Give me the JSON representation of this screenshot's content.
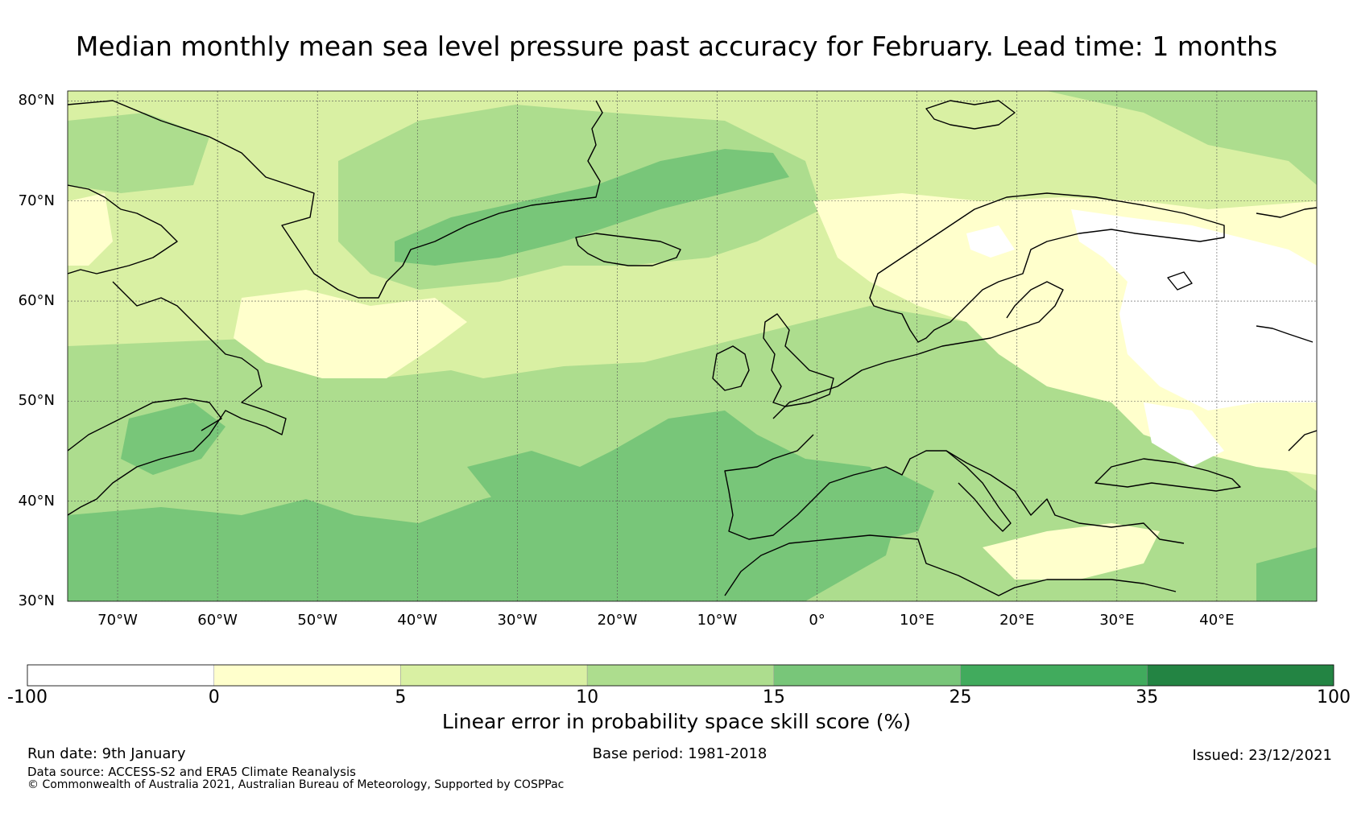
{
  "title": "Median monthly mean sea level pressure past accuracy for February. Lead time: 1 months",
  "map": {
    "lat_labels": [
      "80°N",
      "70°N",
      "60°N",
      "50°N",
      "40°N",
      "30°N"
    ],
    "lon_labels": [
      "70°W",
      "60°W",
      "50°W",
      "40°W",
      "30°W",
      "20°W",
      "10°W",
      "0°",
      "10°E",
      "20°E",
      "30°E",
      "40°E"
    ],
    "extent": {
      "lon": [
        -75,
        50
      ],
      "lat": [
        30,
        81
      ]
    }
  },
  "colorbar": {
    "label": "Linear error in probability space skill score (%)",
    "ticks": [
      "-100",
      "0",
      "5",
      "10",
      "15",
      "25",
      "35",
      "100"
    ],
    "colors": [
      "#ffffff",
      "#ffffcc",
      "#d9f0a3",
      "#addd8e",
      "#78c679",
      "#41ab5d",
      "#238443"
    ]
  },
  "footer": {
    "run_date": "Run date: 9th January",
    "base_period": "Base period: 1981-2018",
    "issued": "Issued: 23/12/2021",
    "data_source": "Data source: ACCESS-S2 and ERA5 Climate Reanalysis",
    "copyright": "© Commonwealth of Australia 2021, Australian Bureau of Meteorology, Supported by COSPPac"
  }
}
